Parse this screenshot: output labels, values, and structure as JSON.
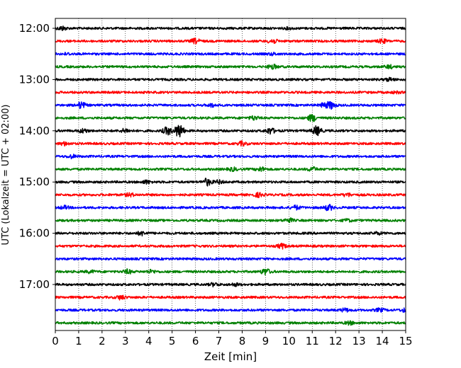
{
  "chart_data": {
    "type": "line",
    "xlabel": "Zeit  [min]",
    "ylabel": "UTC (Lokalzeit = UTC + 02:00)",
    "xlim": [
      0,
      15
    ],
    "x_ticks": [
      "0",
      "1",
      "2",
      "3",
      "4",
      "5",
      "6",
      "7",
      "8",
      "9",
      "10",
      "11",
      "12",
      "13",
      "14",
      "15"
    ],
    "y_ticks": [
      "12:00",
      "13:00",
      "14:00",
      "15:00",
      "16:00",
      "17:00"
    ],
    "grid": "vertical dotted",
    "trace_colors": [
      "#000000",
      "#ff0000",
      "#0000ff",
      "#008000"
    ],
    "traces": [
      {
        "start": "12:00",
        "events": [
          [
            0.3,
            2.5
          ],
          [
            10.0,
            1.0
          ]
        ]
      },
      {
        "start": "12:15",
        "events": [
          [
            6.0,
            3.0
          ],
          [
            9.3,
            3.0
          ],
          [
            14.0,
            2.5
          ]
        ]
      },
      {
        "start": "12:30",
        "events": [
          [
            0.5,
            1.0
          ],
          [
            9.3,
            1.2
          ]
        ]
      },
      {
        "start": "12:45",
        "events": [
          [
            9.3,
            3.0
          ],
          [
            14.3,
            2.0
          ]
        ]
      },
      {
        "start": "13:00",
        "events": [
          [
            14.3,
            2.0
          ]
        ]
      },
      {
        "start": "13:15",
        "events": [
          [
            14.6,
            1.0
          ]
        ]
      },
      {
        "start": "13:30",
        "events": [
          [
            1.1,
            4.0
          ],
          [
            6.7,
            2.0
          ],
          [
            11.5,
            2.5
          ],
          [
            11.8,
            4.5
          ]
        ]
      },
      {
        "start": "13:45",
        "events": [
          [
            8.5,
            2.5
          ],
          [
            11.0,
            4.5
          ]
        ]
      },
      {
        "start": "14:00",
        "events": [
          [
            1.2,
            2.5
          ],
          [
            3.0,
            2.5
          ],
          [
            4.8,
            5.0
          ],
          [
            5.3,
            9.0
          ],
          [
            9.2,
            4.0
          ],
          [
            11.2,
            6.0
          ]
        ]
      },
      {
        "start": "14:15",
        "events": [
          [
            0.4,
            2.0
          ],
          [
            8.0,
            2.5
          ]
        ]
      },
      {
        "start": "14:30",
        "events": [
          [
            0.7,
            2.0
          ]
        ]
      },
      {
        "start": "14:45",
        "events": [
          [
            7.6,
            2.0
          ],
          [
            8.8,
            2.5
          ],
          [
            11.0,
            2.5
          ]
        ]
      },
      {
        "start": "15:00",
        "events": [
          [
            3.9,
            2.0
          ],
          [
            6.5,
            4.5
          ],
          [
            7.0,
            2.0
          ]
        ]
      },
      {
        "start": "15:15",
        "events": [
          [
            3.2,
            2.0
          ],
          [
            8.7,
            2.5
          ],
          [
            12.5,
            2.0
          ]
        ]
      },
      {
        "start": "15:30",
        "events": [
          [
            0.4,
            2.0
          ],
          [
            10.3,
            2.5
          ],
          [
            11.7,
            3.5
          ]
        ]
      },
      {
        "start": "15:45",
        "events": [
          [
            10.0,
            2.5
          ],
          [
            12.5,
            1.5
          ]
        ]
      },
      {
        "start": "16:00",
        "events": [
          [
            3.7,
            2.5
          ],
          [
            13.8,
            1.5
          ]
        ]
      },
      {
        "start": "16:15",
        "events": [
          [
            9.7,
            3.0
          ]
        ]
      },
      {
        "start": "16:30",
        "events": []
      },
      {
        "start": "16:45",
        "events": [
          [
            1.5,
            1.5
          ],
          [
            3.1,
            2.5
          ],
          [
            4.1,
            2.0
          ],
          [
            9.0,
            4.0
          ]
        ]
      },
      {
        "start": "17:00",
        "events": [
          [
            6.8,
            2.0
          ],
          [
            7.7,
            1.5
          ]
        ]
      },
      {
        "start": "17:15",
        "events": [
          [
            2.8,
            2.5
          ]
        ]
      },
      {
        "start": "17:30",
        "events": [
          [
            12.4,
            2.0
          ],
          [
            13.9,
            2.0
          ],
          [
            15.0,
            2.5
          ]
        ]
      },
      {
        "start": "17:45",
        "events": [
          [
            12.6,
            2.0
          ]
        ]
      }
    ]
  }
}
